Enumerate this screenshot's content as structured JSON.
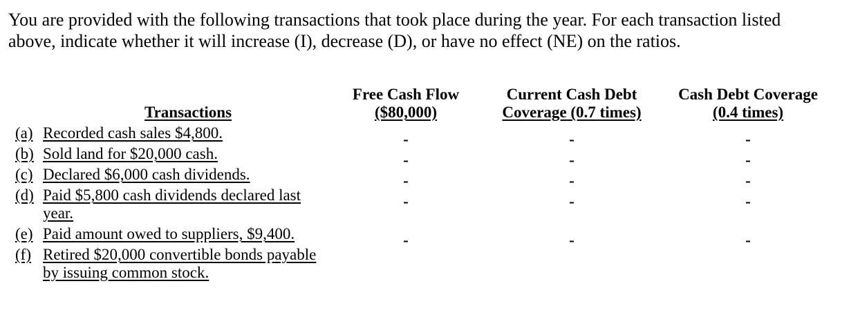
{
  "page": {
    "background_color": "#ffffff",
    "text_color": "#000000"
  },
  "instructions": "You are provided with the following transactions that took place during the year. For each transaction listed\nabove, indicate whether it will increase (I), decrease (D), or have no effect (NE) on the ratios.",
  "answer_key_legend": {
    "increase": "I",
    "decrease": "D",
    "no_effect": "NE"
  },
  "table": {
    "header": {
      "transactions_label": "Transactions",
      "columns": [
        {
          "line1": "Free Cash Flow",
          "line2": "($80,000)"
        },
        {
          "line1": "Current Cash Debt",
          "line2": "Coverage (0.7 times)"
        },
        {
          "line1": "Cash Debt Coverage",
          "line2": "(0.4 times)"
        }
      ]
    },
    "rows": [
      {
        "letter": "(a)",
        "text": "Recorded cash sales $4,800.",
        "values": [
          "-",
          "-",
          "-"
        ]
      },
      {
        "letter": "(b)",
        "text": "Sold land for $20,000 cash.",
        "values": [
          "-",
          "-",
          "-"
        ]
      },
      {
        "letter": "(c)",
        "text": "Declared $6,000 cash dividends.",
        "values": [
          "-",
          "-",
          "-"
        ]
      },
      {
        "letter": "(d)",
        "text": "Paid $5,800 cash dividends declared last\nyear.",
        "values": [
          "-",
          "-",
          "-"
        ]
      },
      {
        "letter": "(e)",
        "text": "Paid amount owed to suppliers, $9,400.",
        "values": [
          "-",
          "-",
          "-"
        ]
      },
      {
        "letter": "(f)",
        "text": "Retired $20,000 convertible bonds payable\nby issuing common stock.",
        "values": [
          "",
          "",
          ""
        ]
      }
    ]
  }
}
